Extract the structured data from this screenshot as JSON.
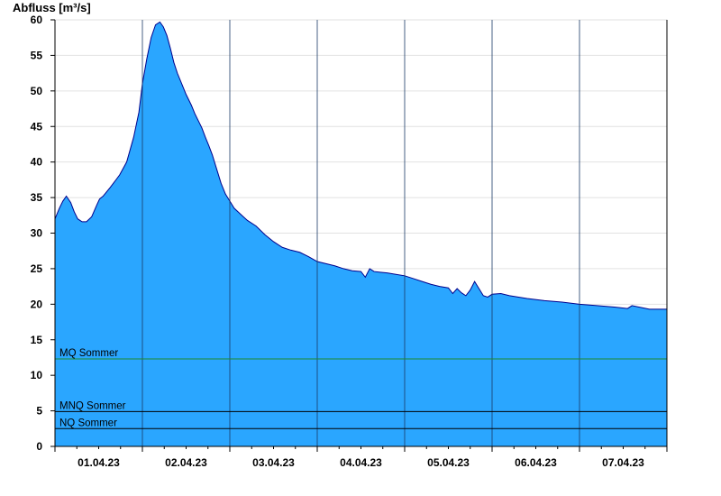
{
  "chart_data": {
    "type": "area",
    "title": "",
    "ylabel": "Abfluss [m³/s]",
    "xlabel": "",
    "ylim": [
      0,
      60
    ],
    "yticks": [
      0,
      5,
      10,
      15,
      20,
      25,
      30,
      35,
      40,
      45,
      50,
      55,
      60
    ],
    "grid": true,
    "x_range_days": [
      0,
      7
    ],
    "day_boundaries": [
      0,
      1,
      2,
      3,
      4,
      5,
      6,
      7
    ],
    "xtick_labels": [
      {
        "at": 0.5,
        "label": "01.04.23"
      },
      {
        "at": 1.5,
        "label": "02.04.23"
      },
      {
        "at": 2.5,
        "label": "03.04.23"
      },
      {
        "at": 3.5,
        "label": "04.04.23"
      },
      {
        "at": 4.5,
        "label": "05.04.23"
      },
      {
        "at": 5.5,
        "label": "06.04.23"
      },
      {
        "at": 6.5,
        "label": "07.04.23"
      }
    ],
    "series": [
      {
        "x": [
          0,
          0.05,
          0.09,
          0.13,
          0.18,
          0.22,
          0.26,
          0.31,
          0.36,
          0.42,
          0.48,
          0.51,
          0.55,
          0.59,
          0.63,
          0.68,
          0.74,
          0.82,
          0.9,
          0.96,
          1.0,
          1.05,
          1.1,
          1.15,
          1.2,
          1.24,
          1.28,
          1.32,
          1.36,
          1.4,
          1.45,
          1.5,
          1.56,
          1.6,
          1.64,
          1.68,
          1.72,
          1.76,
          1.8,
          1.85,
          1.9,
          1.95,
          2.0,
          2.05,
          2.12,
          2.2,
          2.3,
          2.4,
          2.5,
          2.6,
          2.7,
          2.8,
          2.9,
          3.0,
          3.1,
          3.2,
          3.3,
          3.4,
          3.5,
          3.55,
          3.6,
          3.65,
          3.72,
          3.8,
          3.9,
          4.0,
          4.1,
          4.2,
          4.3,
          4.4,
          4.5,
          4.55,
          4.6,
          4.65,
          4.7,
          4.75,
          4.8,
          4.85,
          4.9,
          4.95,
          5.0,
          5.1,
          5.2,
          5.4,
          5.6,
          5.8,
          6.0,
          6.2,
          6.4,
          6.55,
          6.6,
          6.8,
          7.0
        ],
        "y": [
          32.0,
          33.5,
          34.5,
          35.2,
          34.3,
          33.0,
          32.0,
          31.6,
          31.6,
          32.3,
          34.0,
          34.8,
          35.2,
          35.8,
          36.4,
          37.2,
          38.2,
          40.0,
          43.5,
          47.0,
          51.0,
          54.5,
          57.5,
          59.3,
          59.7,
          59.0,
          57.8,
          56.0,
          54.0,
          52.5,
          51.0,
          49.5,
          48.0,
          46.8,
          45.8,
          44.8,
          43.5,
          42.3,
          41.0,
          39.0,
          37.0,
          35.5,
          34.5,
          33.5,
          32.7,
          31.8,
          31.0,
          29.8,
          28.8,
          28.0,
          27.6,
          27.3,
          26.7,
          26.0,
          25.7,
          25.4,
          25.0,
          24.7,
          24.6,
          23.8,
          25.0,
          24.6,
          24.5,
          24.4,
          24.2,
          24.0,
          23.6,
          23.2,
          22.8,
          22.5,
          22.3,
          21.5,
          22.2,
          21.6,
          21.2,
          22.0,
          23.2,
          22.2,
          21.2,
          21.0,
          21.4,
          21.5,
          21.2,
          20.8,
          20.5,
          20.3,
          20.0,
          19.8,
          19.6,
          19.4,
          19.8,
          19.3,
          19.3
        ]
      }
    ],
    "reference_lines": [
      {
        "label": "MQ Sommer",
        "value": 12.3,
        "color": "#1f8a2e"
      },
      {
        "label": "MNQ Sommer",
        "value": 4.9,
        "color": "#000000"
      },
      {
        "label": "NQ Sommer",
        "value": 2.5,
        "color": "#000000"
      }
    ],
    "colors": {
      "area_fill": "#2aa6ff",
      "area_outline": "#00008b",
      "grid": "#e2e2e2",
      "day_line": "#1a3a66"
    }
  }
}
